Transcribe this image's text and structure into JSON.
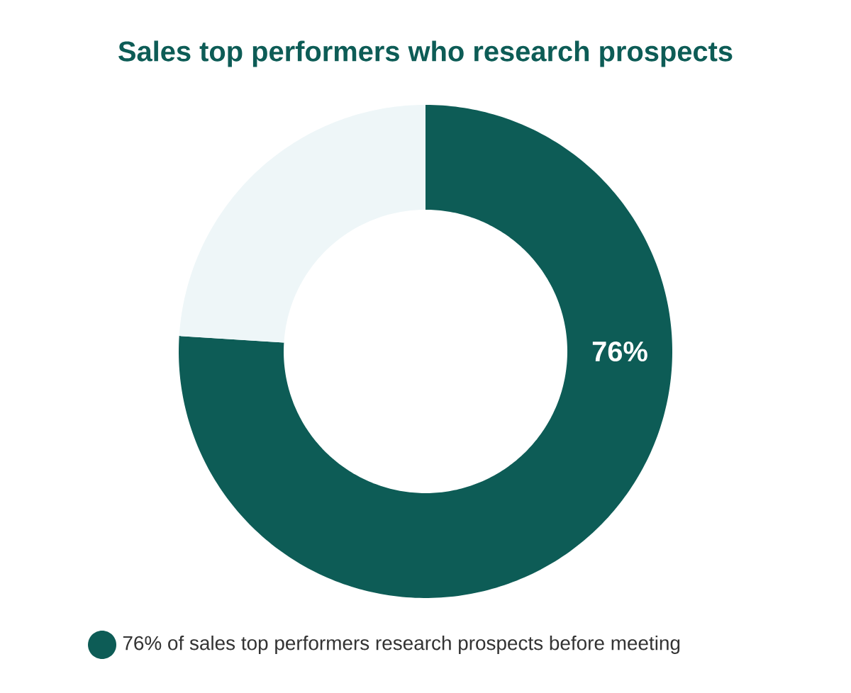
{
  "chart_data": {
    "type": "donut",
    "title": "Sales top performers who research prospects",
    "categories": [
      "76% of sales top performers research prospects before meeting",
      null
    ],
    "values": [
      76,
      24
    ],
    "colors": [
      "#0d5c56",
      "#eef6f8"
    ],
    "value_labels": [
      "76%",
      null
    ],
    "legend": "bottom"
  }
}
